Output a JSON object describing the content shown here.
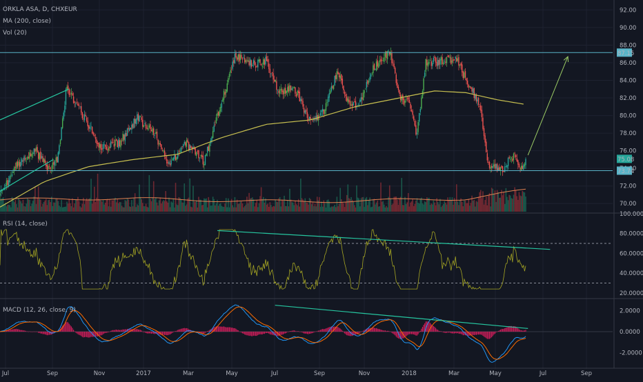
{
  "colors": {
    "background": "#131722",
    "grid": "#1e2230",
    "up": "#26a69a",
    "up_bright": "#4caf50",
    "down": "#ef5350",
    "ma": "#c8c050",
    "vol_ma": "#e08050",
    "trendline": "#26c6a0",
    "hline": "#5ab4c8",
    "rsi": "#a6a623",
    "macd": "#2196f3",
    "signal": "#ff6d00",
    "hist": "#e91e63",
    "label_price": "#26a69a",
    "label_level": "#5ab4c8"
  },
  "chart_data": [
    {
      "type": "candlestick",
      "title": "ORKLA ASA, D, CHXEUR",
      "indicators": [
        "MA (200, close)",
        "Vol (20)"
      ],
      "x_ticks": [
        "Jul",
        "Sep",
        "Nov",
        "2017",
        "Mar",
        "May",
        "Jul",
        "Sep",
        "Nov",
        "2018",
        "Mar",
        "May",
        "Jul",
        "Sep"
      ],
      "y_ticks": [
        "92.00",
        "90.00",
        "88.00",
        "86.00",
        "84.00",
        "82.00",
        "80.00",
        "78.00",
        "76.00",
        "74.00",
        "72.00",
        "70.00"
      ],
      "ylim": [
        69,
        92.5
      ],
      "price_path": [
        [
          0,
          71.0
        ],
        [
          0.04,
          74.5
        ],
        [
          0.08,
          76.0
        ],
        [
          0.11,
          74.0
        ],
        [
          0.13,
          75.0
        ],
        [
          0.15,
          83.2
        ],
        [
          0.19,
          79.8
        ],
        [
          0.23,
          76.2
        ],
        [
          0.27,
          77.0
        ],
        [
          0.31,
          79.8
        ],
        [
          0.35,
          77.8
        ],
        [
          0.38,
          74.4
        ],
        [
          0.42,
          76.8
        ],
        [
          0.46,
          74.8
        ],
        [
          0.49,
          79.8
        ],
        [
          0.53,
          86.8
        ],
        [
          0.57,
          85.8
        ],
        [
          0.6,
          86.2
        ],
        [
          0.63,
          82.5
        ],
        [
          0.66,
          83.5
        ],
        [
          0.7,
          79.2
        ],
        [
          0.73,
          80.5
        ],
        [
          0.76,
          85.0
        ],
        [
          0.79,
          81.0
        ],
        [
          0.81,
          81.2
        ],
        [
          0.84,
          85.5
        ],
        [
          0.88,
          87.2
        ],
        [
          0.9,
          82.0
        ],
        [
          0.92,
          81.5
        ],
        [
          0.94,
          77.8
        ],
        [
          0.96,
          86.0
        ],
        [
          1.0,
          86.2
        ],
        [
          1.03,
          86.4
        ],
        [
          1.05,
          84.0
        ],
        [
          1.08,
          81.5
        ],
        [
          1.1,
          74.5
        ],
        [
          1.13,
          73.8
        ],
        [
          1.16,
          75.5
        ],
        [
          1.175,
          74.0
        ],
        [
          1.185,
          75.1
        ]
      ],
      "ma_path": [
        [
          0,
          69.6
        ],
        [
          0.1,
          72.5
        ],
        [
          0.2,
          74.2
        ],
        [
          0.3,
          75.0
        ],
        [
          0.4,
          75.6
        ],
        [
          0.5,
          77.5
        ],
        [
          0.6,
          79.0
        ],
        [
          0.7,
          79.5
        ],
        [
          0.8,
          81.0
        ],
        [
          0.9,
          82.0
        ],
        [
          0.98,
          82.8
        ],
        [
          1.05,
          82.6
        ],
        [
          1.12,
          81.8
        ],
        [
          1.18,
          81.3
        ]
      ],
      "price_labels": {
        "current": "75.08",
        "level": "73.74",
        "resistance": "87.15"
      },
      "horizontal_levels": [
        87.15,
        73.74
      ],
      "trendlines": [
        {
          "from": [
            0,
            79.5
          ],
          "to": [
            0.155,
            83.0
          ]
        },
        {
          "from": [
            0,
            71.4
          ],
          "to": [
            0.12,
            75.0
          ]
        }
      ],
      "projection": {
        "from": [
          1.19,
          75.5
        ],
        "to": [
          1.28,
          86.7
        ]
      }
    },
    {
      "type": "line",
      "title": "RSI (14, close)",
      "y_ticks": [
        "100.0000",
        "80.0000",
        "60.0000",
        "40.0000",
        "20.0000"
      ],
      "ylim": [
        15,
        100
      ],
      "levels": [
        70,
        30
      ],
      "trendline": {
        "from": [
          0.49,
          83
        ],
        "to": [
          1.24,
          64
        ]
      }
    },
    {
      "type": "line",
      "title": "MACD (12, 26, close, 9)",
      "y_ticks": [
        "2.0000",
        "0.0000",
        "-2.0000"
      ],
      "ylim": [
        -3.2,
        3.0
      ],
      "trendline": {
        "from": [
          0.62,
          2.5
        ],
        "to": [
          1.19,
          0.3
        ]
      }
    }
  ]
}
